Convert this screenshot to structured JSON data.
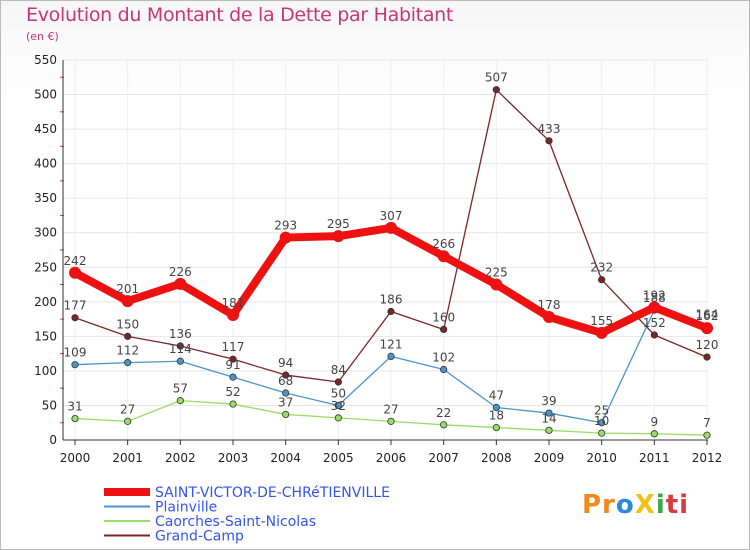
{
  "chart_data": {
    "type": "line",
    "title": "Evolution du Montant de la Dette par Habitant",
    "subtitle": "(en €)",
    "xlabel": "",
    "ylabel": "",
    "categories": [
      "2000",
      "2001",
      "2002",
      "2003",
      "2004",
      "2005",
      "2006",
      "2007",
      "2008",
      "2009",
      "2010",
      "2011",
      "2012"
    ],
    "ylim": [
      0,
      550
    ],
    "yticks": [
      0,
      50,
      100,
      150,
      200,
      250,
      300,
      350,
      400,
      450,
      500,
      550
    ],
    "grid": true,
    "legend_position": "bottom-left",
    "series": [
      {
        "name": "SAINT-VICTOR-DE-CHRéTIENVILLE",
        "color": "#ee1111",
        "values": [
          242,
          201,
          226,
          181,
          293,
          295,
          307,
          266,
          225,
          178,
          155,
          192,
          162
        ]
      },
      {
        "name": "Plainville",
        "color": "#4a94cc",
        "values": [
          109,
          112,
          114,
          91,
          68,
          50,
          121,
          102,
          47,
          39,
          25,
          188,
          164
        ]
      },
      {
        "name": "Caorches-Saint-Nicolas",
        "color": "#99dd66",
        "values": [
          31,
          27,
          57,
          52,
          37,
          32,
          27,
          22,
          18,
          14,
          10,
          9,
          7
        ]
      },
      {
        "name": "Grand-Camp",
        "color": "#7a2626",
        "values": [
          177,
          150,
          136,
          117,
          94,
          84,
          186,
          160,
          507,
          433,
          232,
          152,
          120
        ]
      }
    ]
  },
  "logo": {
    "letters": [
      "Pr",
      "o",
      "X",
      "i",
      "ti"
    ]
  }
}
